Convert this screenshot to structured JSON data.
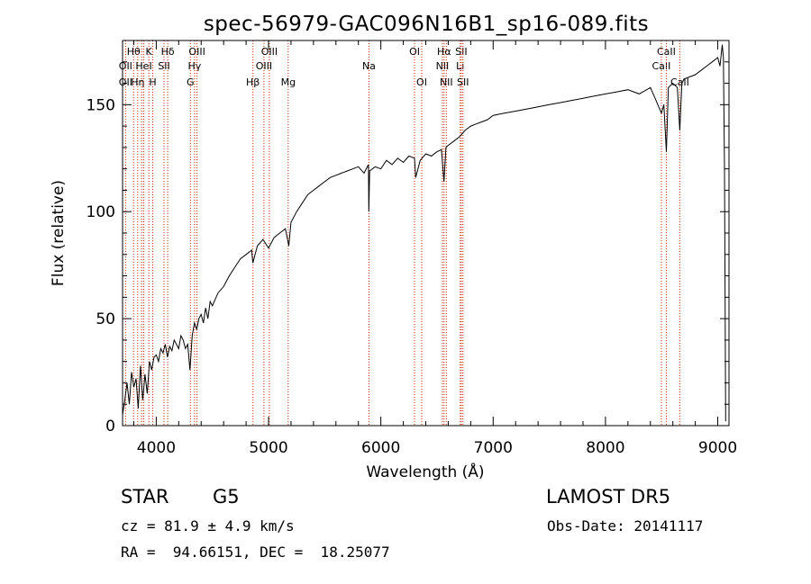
{
  "chart_data": {
    "type": "line",
    "title": "spec-56979-GAC096N16B1_sp16-089.fits",
    "xlabel": "Wavelength (Å)",
    "ylabel": "Flux (relative)",
    "xlim": [
      3700,
      9100
    ],
    "ylim": [
      0,
      180
    ],
    "xticks": [
      4000,
      5000,
      6000,
      7000,
      8000,
      9000
    ],
    "yticks": [
      0,
      50,
      100,
      150
    ],
    "grid": false,
    "series": [
      {
        "x": [
          3700,
          3720,
          3740,
          3760,
          3780,
          3800,
          3820,
          3840,
          3860,
          3880,
          3900,
          3920,
          3940,
          3960,
          3980,
          4000,
          4020,
          4040,
          4060,
          4080,
          4100,
          4120,
          4140,
          4160,
          4180,
          4200,
          4220,
          4240,
          4260,
          4280,
          4300,
          4320,
          4340,
          4360,
          4380,
          4400,
          4420,
          4440,
          4460,
          4480,
          4500,
          4550,
          4600,
          4650,
          4700,
          4750,
          4800,
          4850,
          4860,
          4900,
          4950,
          5000,
          5050,
          5100,
          5150,
          5180,
          5200,
          5250,
          5300,
          5350,
          5400,
          5450,
          5500,
          5550,
          5600,
          5650,
          5700,
          5750,
          5800,
          5850,
          5890,
          5893,
          5900,
          5950,
          6000,
          6050,
          6100,
          6150,
          6200,
          6250,
          6300,
          6310,
          6350,
          6400,
          6450,
          6500,
          6540,
          6562,
          6580,
          6600,
          6650,
          6700,
          6750,
          6800,
          6850,
          6900,
          6950,
          7000,
          7100,
          7200,
          7300,
          7400,
          7500,
          7600,
          7700,
          7800,
          7900,
          8000,
          8100,
          8200,
          8300,
          8400,
          8450,
          8498,
          8520,
          8542,
          8560,
          8600,
          8640,
          8662,
          8680,
          8700,
          8750,
          8800,
          8850,
          8900,
          8950,
          9000,
          9020,
          9040,
          9050,
          9060,
          9070
        ],
        "y": [
          5,
          12,
          20,
          10,
          25,
          18,
          22,
          8,
          28,
          12,
          24,
          15,
          30,
          26,
          32,
          33,
          30,
          36,
          34,
          38,
          32,
          37,
          35,
          40,
          38,
          36,
          42,
          40,
          36,
          38,
          26,
          42,
          48,
          45,
          50,
          52,
          48,
          55,
          50,
          58,
          56,
          62,
          65,
          70,
          74,
          78,
          80,
          82,
          76,
          84,
          87,
          83,
          88,
          90,
          92,
          84,
          95,
          100,
          104,
          108,
          110,
          112,
          114,
          116,
          117,
          118,
          119,
          120,
          121,
          118,
          122,
          100,
          119,
          121,
          120,
          124,
          122,
          125,
          123,
          126,
          125,
          116,
          124,
          127,
          126,
          128,
          129,
          114,
          130,
          131,
          133,
          135,
          138,
          140,
          141,
          142,
          143,
          145,
          146,
          147,
          148,
          149,
          150,
          151,
          152,
          153,
          154,
          155,
          156,
          157,
          155,
          158,
          152,
          146,
          150,
          128,
          158,
          160,
          158,
          138,
          160,
          162,
          163,
          164,
          166,
          168,
          170,
          172,
          168,
          178,
          172,
          120,
          2
        ]
      }
    ]
  },
  "line_marks": [
    {
      "x": 3727,
      "labels": [
        {
          "text": "OII",
          "row": 3
        },
        {
          "text": "OII",
          "row": 2
        }
      ]
    },
    {
      "x": 3798,
      "labels": [
        {
          "text": "Hθ",
          "row": 1
        }
      ]
    },
    {
      "x": 3835,
      "labels": [
        {
          "text": "Hη",
          "row": 3
        }
      ]
    },
    {
      "x": 3870,
      "labels": []
    },
    {
      "x": 3889,
      "labels": [
        {
          "text": "HeI",
          "row": 2
        }
      ]
    },
    {
      "x": 3934,
      "labels": [
        {
          "text": "K",
          "row": 1
        }
      ]
    },
    {
      "x": 3969,
      "labels": [
        {
          "text": "H",
          "row": 3
        }
      ]
    },
    {
      "x": 4069,
      "labels": [
        {
          "text": "SII",
          "row": 2
        }
      ]
    },
    {
      "x": 4102,
      "labels": [
        {
          "text": "Hδ",
          "row": 1
        }
      ]
    },
    {
      "x": 4304,
      "labels": [
        {
          "text": "G",
          "row": 3
        }
      ]
    },
    {
      "x": 4341,
      "labels": [
        {
          "text": "Hγ",
          "row": 2
        }
      ]
    },
    {
      "x": 4363,
      "labels": [
        {
          "text": "OIII",
          "row": 1
        }
      ]
    },
    {
      "x": 4861,
      "labels": [
        {
          "text": "Hβ",
          "row": 3
        }
      ]
    },
    {
      "x": 4959,
      "labels": [
        {
          "text": "OIII",
          "row": 2
        }
      ]
    },
    {
      "x": 5007,
      "labels": [
        {
          "text": "OIII",
          "row": 1
        }
      ]
    },
    {
      "x": 5175,
      "labels": [
        {
          "text": "Mg",
          "row": 3
        }
      ]
    },
    {
      "x": 5894,
      "labels": [
        {
          "text": "Na",
          "row": 2
        }
      ]
    },
    {
      "x": 6300,
      "labels": [
        {
          "text": "OI",
          "row": 1
        }
      ]
    },
    {
      "x": 6364,
      "labels": [
        {
          "text": "OI",
          "row": 3
        }
      ]
    },
    {
      "x": 6548,
      "labels": [
        {
          "text": "NII",
          "row": 2
        }
      ]
    },
    {
      "x": 6563,
      "labels": [
        {
          "text": "Hα",
          "row": 1
        }
      ]
    },
    {
      "x": 6583,
      "labels": [
        {
          "text": "NII",
          "row": 3
        }
      ]
    },
    {
      "x": 6707,
      "labels": [
        {
          "text": "Li",
          "row": 2
        }
      ]
    },
    {
      "x": 6716,
      "labels": [
        {
          "text": "SII",
          "row": 1
        }
      ]
    },
    {
      "x": 6731,
      "labels": [
        {
          "text": "SII",
          "row": 3
        }
      ]
    },
    {
      "x": 8498,
      "labels": [
        {
          "text": "CaII",
          "row": 2
        }
      ]
    },
    {
      "x": 8542,
      "labels": [
        {
          "text": "CaII",
          "row": 1
        }
      ]
    },
    {
      "x": 8662,
      "labels": [
        {
          "text": "CaII",
          "row": 3
        }
      ]
    }
  ],
  "info": {
    "class": "STAR",
    "subclass": "G5",
    "survey": "LAMOST DR5",
    "cz": "cz = 81.9 ± 4.9 km/s",
    "obs_date": "Obs-Date: 20141117",
    "coords": "RA =  94.66151, DEC =  18.25077"
  },
  "colors": {
    "axis": "#000000",
    "spectrum": "#000000",
    "line_marker": "#cc2200"
  }
}
